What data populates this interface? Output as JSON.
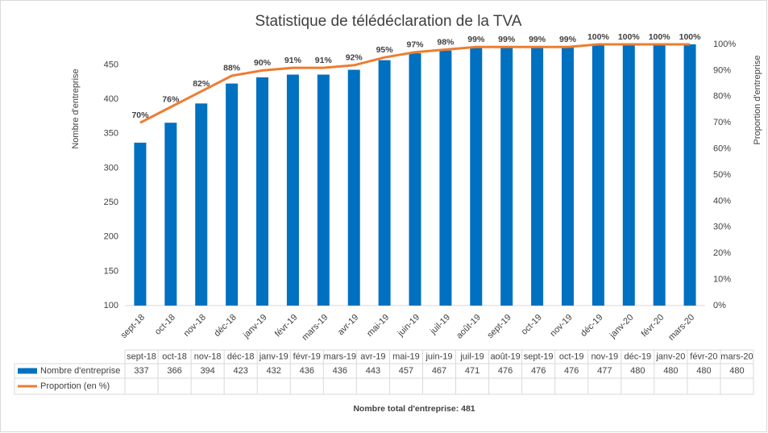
{
  "chart_data": {
    "type": "bar",
    "title": "Statistique de télédéclaration de la TVA",
    "y_label": "Nombre d'entreprise",
    "y2_label": "Proportion d'entreprise",
    "note": "Nombre total d'entreprise: 481",
    "categories": [
      "sept-18",
      "oct-18",
      "nov-18",
      "déc-18",
      "janv-19",
      "févr-19",
      "mars-19",
      "avr-19",
      "mai-19",
      "juin-19",
      "juil-19",
      "août-19",
      "sept-19",
      "oct-19",
      "nov-19",
      "déc-19",
      "janv-20",
      "févr-20",
      "mars-20"
    ],
    "series": [
      {
        "name": "Nombre d'entreprise",
        "type": "bar",
        "color": "#0070c0",
        "values": [
          337,
          366,
          394,
          423,
          432,
          436,
          436,
          443,
          457,
          467,
          471,
          476,
          476,
          476,
          477,
          480,
          480,
          480,
          480
        ]
      },
      {
        "name": "Proportion (en %)",
        "type": "line",
        "axis": "y2",
        "color": "#ed7d31",
        "values": [
          70,
          76,
          82,
          88,
          90,
          91,
          91,
          92,
          95,
          97,
          98,
          99,
          99,
          99,
          99,
          100,
          100,
          100,
          100
        ],
        "value_labels": [
          "70%",
          "76%",
          "82%",
          "88%",
          "90%",
          "91%",
          "91%",
          "92%",
          "95%",
          "97%",
          "98%",
          "99%",
          "99%",
          "99%",
          "99%",
          "100%",
          "100%",
          "100%",
          "100%"
        ]
      }
    ],
    "ylim": [
      100,
      480
    ],
    "yticks": [
      100,
      150,
      200,
      250,
      300,
      350,
      400,
      450
    ],
    "y2lim": [
      0,
      100
    ],
    "y2ticks": [
      {
        "value": 0,
        "label": "0%"
      },
      {
        "value": 10,
        "label": "10%"
      },
      {
        "value": 20,
        "label": "20%"
      },
      {
        "value": 30,
        "label": "30%"
      },
      {
        "value": 40,
        "label": "40%"
      },
      {
        "value": 50,
        "label": "50%"
      },
      {
        "value": 60,
        "label": "60%"
      },
      {
        "value": 70,
        "label": "70%"
      },
      {
        "value": 80,
        "label": "80%"
      },
      {
        "value": 90,
        "label": "90%"
      },
      {
        "value": 100,
        "label": "100%"
      }
    ],
    "grid": false
  }
}
